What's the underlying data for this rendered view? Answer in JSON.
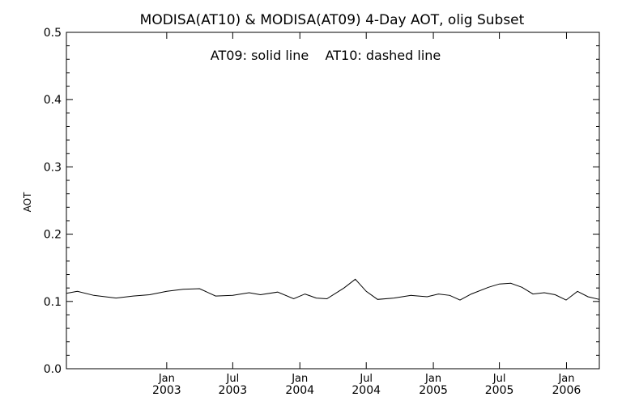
{
  "chart_data": {
    "type": "line",
    "title": "MODISA(AT10) & MODISA(AT09) 4-Day AOT, olig Subset",
    "annotation": "AT09: solid line    AT10: dashed line",
    "ylabel": "AOT",
    "xlabel": "",
    "ylim": [
      0.0,
      0.5
    ],
    "yticks": [
      "0.0",
      "0.1",
      "0.2",
      "0.3",
      "0.4",
      "0.5"
    ],
    "xlim": [
      "2002-04-01",
      "2006-04-01"
    ],
    "xticks": [
      {
        "date": "2003-01-01",
        "line1": "Jan",
        "line2": "2003"
      },
      {
        "date": "2003-07-01",
        "line1": "Jul",
        "line2": "2003"
      },
      {
        "date": "2004-01-01",
        "line1": "Jan",
        "line2": "2004"
      },
      {
        "date": "2004-07-01",
        "line1": "Jul",
        "line2": "2004"
      },
      {
        "date": "2005-01-01",
        "line1": "Jan",
        "line2": "2005"
      },
      {
        "date": "2005-07-01",
        "line1": "Jul",
        "line2": "2005"
      },
      {
        "date": "2006-01-01",
        "line1": "Jan",
        "line2": "2006"
      }
    ],
    "grid": false,
    "series": [
      {
        "name": "AT09",
        "style": "solid",
        "color": "#000000",
        "points": [
          [
            "2002-04-01",
            0.112
          ],
          [
            "2002-05-01",
            0.115
          ],
          [
            "2002-06-15",
            0.109
          ],
          [
            "2002-08-15",
            0.105
          ],
          [
            "2002-10-01",
            0.108
          ],
          [
            "2002-11-15",
            0.11
          ],
          [
            "2003-01-01",
            0.115
          ],
          [
            "2003-02-15",
            0.118
          ],
          [
            "2003-04-01",
            0.119
          ],
          [
            "2003-05-15",
            0.108
          ],
          [
            "2003-07-01",
            0.109
          ],
          [
            "2003-08-15",
            0.113
          ],
          [
            "2003-09-15",
            0.11
          ],
          [
            "2003-11-01",
            0.114
          ],
          [
            "2003-12-15",
            0.104
          ],
          [
            "2004-01-15",
            0.111
          ],
          [
            "2004-02-15",
            0.105
          ],
          [
            "2004-03-15",
            0.104
          ],
          [
            "2004-05-01",
            0.12
          ],
          [
            "2004-06-01",
            0.133
          ],
          [
            "2004-07-01",
            0.115
          ],
          [
            "2004-08-01",
            0.103
          ],
          [
            "2004-09-15",
            0.105
          ],
          [
            "2004-11-01",
            0.109
          ],
          [
            "2004-12-15",
            0.107
          ],
          [
            "2005-01-15",
            0.111
          ],
          [
            "2005-02-15",
            0.109
          ],
          [
            "2005-03-15",
            0.102
          ],
          [
            "2005-04-15",
            0.111
          ],
          [
            "2005-06-01",
            0.121
          ],
          [
            "2005-07-01",
            0.126
          ],
          [
            "2005-08-01",
            0.127
          ],
          [
            "2005-09-01",
            0.121
          ],
          [
            "2005-10-01",
            0.111
          ],
          [
            "2005-11-01",
            0.113
          ],
          [
            "2005-12-01",
            0.11
          ],
          [
            "2005-12-31",
            0.102
          ],
          [
            "2006-01-31",
            0.115
          ],
          [
            "2006-03-01",
            0.107
          ],
          [
            "2006-04-01",
            0.103
          ]
        ]
      }
    ]
  }
}
